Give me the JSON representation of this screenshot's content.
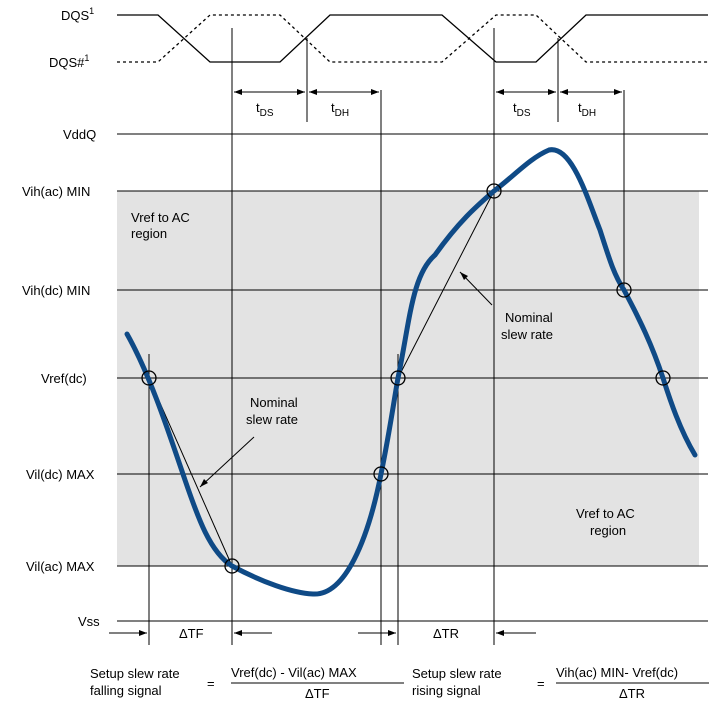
{
  "signals": {
    "dqs": "DQS",
    "dqs_sup": "1",
    "dqs_n": "DQS#",
    "dqs_n_sup": "1"
  },
  "levels": {
    "vddq": "VddQ",
    "vih_ac": "Vih(ac) MIN",
    "vih_dc": "Vih(dc) MIN",
    "vref": "Vref(dc)",
    "vil_dc": "Vil(dc) MAX",
    "vil_ac": "Vil(ac) MAX",
    "vss": "Vss"
  },
  "timing": {
    "t": "t",
    "ds_sub": "DS",
    "dh_sub": "DH"
  },
  "regions": {
    "upper_line1": "Vref to AC",
    "upper_line2": "region",
    "lower_line1": "Vref to AC",
    "lower_line2": "region"
  },
  "annotations": {
    "nominal_line1": "Nominal",
    "nominal_line2": "slew rate"
  },
  "deltas": {
    "tf": "ΔTF",
    "tr": "ΔTR"
  },
  "formulas": {
    "falling_label_line1": "Setup slew rate",
    "falling_label_line2": "falling signal",
    "falling_numerator": "Vref(dc) - Vil(ac) MAX",
    "falling_denominator": "ΔTF",
    "rising_label_line1": "Setup slew rate",
    "rising_label_line2": "rising signal",
    "rising_numerator": "Vih(ac) MIN- Vref(dc)",
    "rising_denominator": "ΔTR",
    "equals": "="
  },
  "colors": {
    "waveform": "#0f4a86",
    "region_fill": "#e3e3e3"
  }
}
